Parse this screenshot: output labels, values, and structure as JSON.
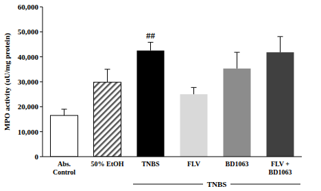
{
  "chart_data": {
    "type": "bar",
    "y_label": "MPO activity (uU/mg protein)",
    "categories": [
      "Abs. Control",
      "50% EtOH",
      "TNBS",
      "FLV",
      "BD1063",
      "FLV + BD1063"
    ],
    "values": [
      16500,
      29800,
      42500,
      25000,
      35300,
      41800
    ],
    "errors": [
      2500,
      5200,
      3300,
      2700,
      6500,
      6300
    ],
    "colors": [
      "#ffffff",
      "#555555",
      "#000000",
      "#d9d9d9",
      "#8c8c8c",
      "#404040"
    ],
    "ylim": [
      0,
      60000
    ],
    "yticks": [
      {
        "value": 0,
        "label": "0"
      },
      {
        "value": 10000,
        "label": "10,000"
      },
      {
        "value": 20000,
        "label": "20,000"
      },
      {
        "value": 30000,
        "label": "30,000"
      },
      {
        "value": 40000,
        "label": "40,000"
      },
      {
        "value": 50000,
        "label": "50,000"
      },
      {
        "value": 60000,
        "label": "60,000"
      }
    ],
    "grid": false,
    "annotations": [
      {
        "text": "##",
        "index": 2
      }
    ],
    "group_labels": [
      {
        "text": "TNBS",
        "from": 2,
        "to": 5
      }
    ]
  }
}
